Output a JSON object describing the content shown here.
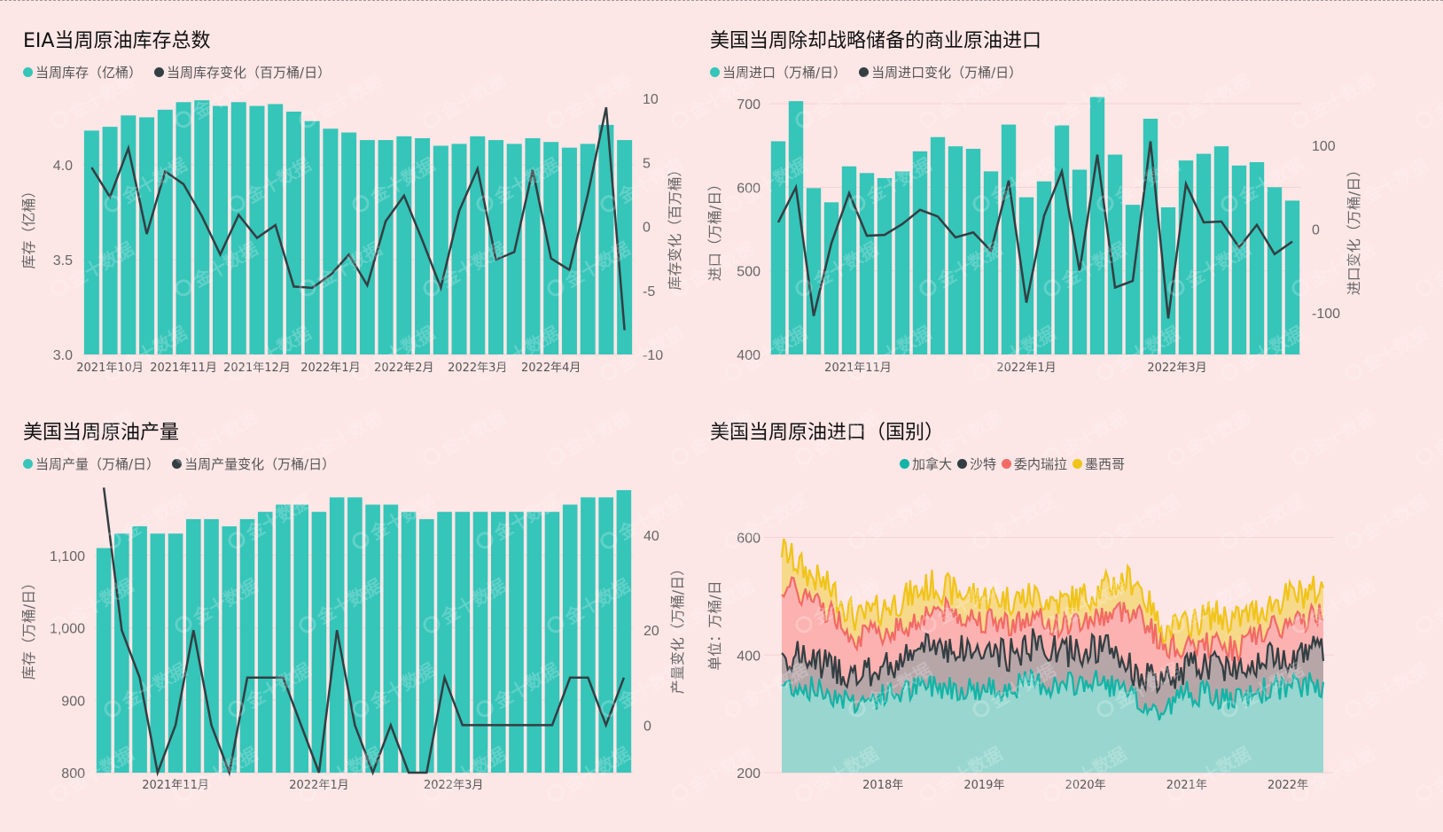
{
  "colors": {
    "bar": "#35c5b9",
    "line": "#333e42",
    "canada": "#12b4a7",
    "canada_fill": "#98d6cf",
    "saudi": "#333e42",
    "saudi_fill": "#b6a6a8",
    "venezuela": "#f26a66",
    "venezuela_fill": "#fcb2b0",
    "mexico": "#f0c419",
    "mexico_fill": "#f7d98a",
    "background": "#fde6e6"
  },
  "watermark": "金十数据",
  "chart_data": [
    {
      "id": "eia-inventory",
      "type": "bar",
      "title": "EIA当周原油库存总数",
      "legend": [
        {
          "label": "当周库存（亿桶）",
          "color": "#35c5b9"
        },
        {
          "label": "当周库存变化（百万桶/日）",
          "color": "#333e42"
        }
      ],
      "ylabel": "库存（亿桶）",
      "y2label": "库存变化（百万桶）",
      "ylim": [
        3.0,
        4.35
      ],
      "yticks": [
        "3.0",
        "3.5",
        "4.0"
      ],
      "y2lim": [
        -10,
        10
      ],
      "y2ticks": [
        "-10",
        "-5",
        "0",
        "5",
        "10"
      ],
      "xticks": [
        "2021年10月",
        "2021年11月",
        "2021年12月",
        "2022年1月",
        "2022年2月",
        "2022年3月",
        "2022年4月"
      ],
      "xtick_positions": [
        1.5,
        5.5,
        9.5,
        13.5,
        17.5,
        21.5,
        25.5
      ],
      "series": [
        {
          "name": "当周库存（亿桶）",
          "type": "bar",
          "values": [
            4.18,
            4.2,
            4.26,
            4.25,
            4.29,
            4.33,
            4.34,
            4.31,
            4.33,
            4.31,
            4.32,
            4.28,
            4.23,
            4.19,
            4.17,
            4.13,
            4.13,
            4.15,
            4.14,
            4.1,
            4.11,
            4.15,
            4.13,
            4.11,
            4.14,
            4.12,
            4.09,
            4.11,
            4.21,
            4.13
          ]
        },
        {
          "name": "当周库存变化（百万桶/日）",
          "type": "line",
          "values": [
            4.6,
            2.3,
            6.1,
            -0.6,
            4.3,
            3.3,
            0.8,
            -2.2,
            0.9,
            -0.9,
            0.1,
            -4.7,
            -4.8,
            -3.8,
            -2.2,
            -4.6,
            0.4,
            2.4,
            -1.1,
            -4.8,
            1.2,
            4.5,
            -2.6,
            -2.0,
            4.4,
            -2.5,
            -3.4,
            2.5,
            9.3,
            -8.1
          ]
        }
      ]
    },
    {
      "id": "commercial-imports",
      "type": "bar",
      "title": "美国当周除却战略储备的商业原油进口",
      "legend": [
        {
          "label": "当周进口（万桶/日）",
          "color": "#35c5b9"
        },
        {
          "label": "当周进口变化（万桶/日）",
          "color": "#333e42"
        }
      ],
      "ylabel": "进口（万桶/日）",
      "y2label": "进口变化（万桶/日）",
      "ylim": [
        400,
        700
      ],
      "yticks": [
        "400",
        "500",
        "600",
        "700"
      ],
      "y2lim": [
        -150,
        150
      ],
      "y2ticks": [
        "-100",
        "0",
        "100"
      ],
      "xticks": [
        "2021年11月",
        "2022年1月",
        "2022年3月"
      ],
      "xtick_positions": [
        5,
        14.5,
        23
      ],
      "series": [
        {
          "name": "当周进口（万桶/日）",
          "type": "bar",
          "values": [
            655,
            703,
            599,
            582,
            625,
            617,
            611,
            619,
            643,
            660,
            649,
            646,
            619,
            675,
            588,
            607,
            674,
            621,
            708,
            639,
            579,
            682,
            576,
            632,
            640,
            649,
            626,
            630,
            600,
            584
          ]
        },
        {
          "name": "当周进口变化（万桶/日）",
          "type": "line",
          "values": [
            8,
            50,
            -104,
            -17,
            43,
            -8,
            -7,
            6,
            23,
            15,
            -10,
            -4,
            -26,
            58,
            -88,
            16,
            69,
            -50,
            89,
            -70,
            -62,
            105,
            -107,
            54,
            8,
            9,
            -22,
            5,
            -30,
            -15
          ]
        }
      ]
    },
    {
      "id": "crude-production",
      "type": "bar",
      "title": "美国当周原油产量",
      "legend": [
        {
          "label": "当周产量（万桶/日）",
          "color": "#35c5b9"
        },
        {
          "label": "当周产量变化（万桶/日）",
          "color": "#333e42"
        }
      ],
      "ylabel": "库存（万桶/日）",
      "y2label": "产量变化（万桶/日）",
      "ylim": [
        800,
        1200
      ],
      "yticks": [
        "800",
        "900",
        "1,000",
        "1,100"
      ],
      "y2lim": [
        -10,
        51
      ],
      "y2ticks": [
        "0",
        "20",
        "40"
      ],
      "xticks": [
        "2021年11月",
        "2022年1月",
        "2022年3月"
      ],
      "xtick_positions": [
        4.5,
        12.5,
        20
      ],
      "series": [
        {
          "name": "当周产量（万桶/日）",
          "type": "bar",
          "values": [
            1110,
            1130,
            1140,
            1130,
            1130,
            1150,
            1150,
            1140,
            1150,
            1160,
            1170,
            1170,
            1160,
            1180,
            1180,
            1170,
            1170,
            1160,
            1150,
            1160,
            1160,
            1160,
            1160,
            1160,
            1160,
            1160,
            1170,
            1180,
            1180,
            1190
          ]
        },
        {
          "name": "当周产量变化（万桶/日）",
          "type": "line",
          "values": [
            50,
            20,
            10,
            -10,
            0,
            20,
            0,
            -10,
            10,
            10,
            10,
            0,
            -10,
            20,
            0,
            -10,
            0,
            -10,
            -10,
            10,
            0,
            0,
            0,
            0,
            0,
            0,
            10,
            10,
            0,
            10
          ]
        }
      ]
    },
    {
      "id": "imports-by-country",
      "type": "area",
      "title": "美国当周原油进口（国别）",
      "legend": [
        {
          "label": "加拿大",
          "color": "#12b4a7"
        },
        {
          "label": "沙特",
          "color": "#333e42"
        },
        {
          "label": "委内瑞拉",
          "color": "#f26a66"
        },
        {
          "label": "墨西哥",
          "color": "#f0c419"
        }
      ],
      "ylabel": "单位：万桶/日",
      "ylim": [
        200,
        640
      ],
      "yticks": [
        "200",
        "400",
        "600"
      ],
      "xlim": [
        2017.0,
        2022.35
      ],
      "xticks": [
        "2018年",
        "2019年",
        "2020年",
        "2021年",
        "2022年"
      ],
      "xtick_values": [
        2018,
        2019,
        2020,
        2021,
        2022
      ],
      "stacked": true,
      "series_summary": [
        {
          "name": "加拿大",
          "cumulative_range": [
            280,
            380
          ]
        },
        {
          "name": "沙特",
          "cumulative_range": [
            330,
            460
          ]
        },
        {
          "name": "委内瑞拉",
          "cumulative_range": [
            380,
            560
          ]
        },
        {
          "name": "墨西哥",
          "cumulative_range": [
            400,
            620
          ]
        }
      ],
      "cumulative_anchor_points": {
        "x": [
          2017.0,
          2017.25,
          2017.5,
          2017.75,
          2018.0,
          2018.25,
          2018.5,
          2018.75,
          2019.0,
          2019.25,
          2019.5,
          2019.75,
          2020.0,
          2020.25,
          2020.5,
          2020.75,
          2021.0,
          2021.25,
          2021.5,
          2021.75,
          2022.0,
          2022.3
        ],
        "canada": [
          350,
          345,
          335,
          320,
          330,
          340,
          350,
          345,
          340,
          345,
          355,
          345,
          355,
          350,
          320,
          300,
          340,
          330,
          320,
          340,
          345,
          350
        ],
        "saudi": [
          400,
          395,
          380,
          360,
          380,
          395,
          420,
          410,
          405,
          400,
          420,
          405,
          410,
          410,
          370,
          350,
          380,
          385,
          380,
          395,
          400,
          410
        ],
        "venezuela": [
          520,
          500,
          470,
          430,
          440,
          450,
          480,
          470,
          460,
          455,
          460,
          450,
          460,
          470,
          480,
          420,
          410,
          420,
          410,
          440,
          450,
          470
        ],
        "mexico": [
          580,
          540,
          510,
          460,
          480,
          500,
          520,
          505,
          500,
          495,
          500,
          490,
          500,
          520,
          530,
          440,
          450,
          470,
          460,
          480,
          500,
          510
        ]
      }
    }
  ]
}
